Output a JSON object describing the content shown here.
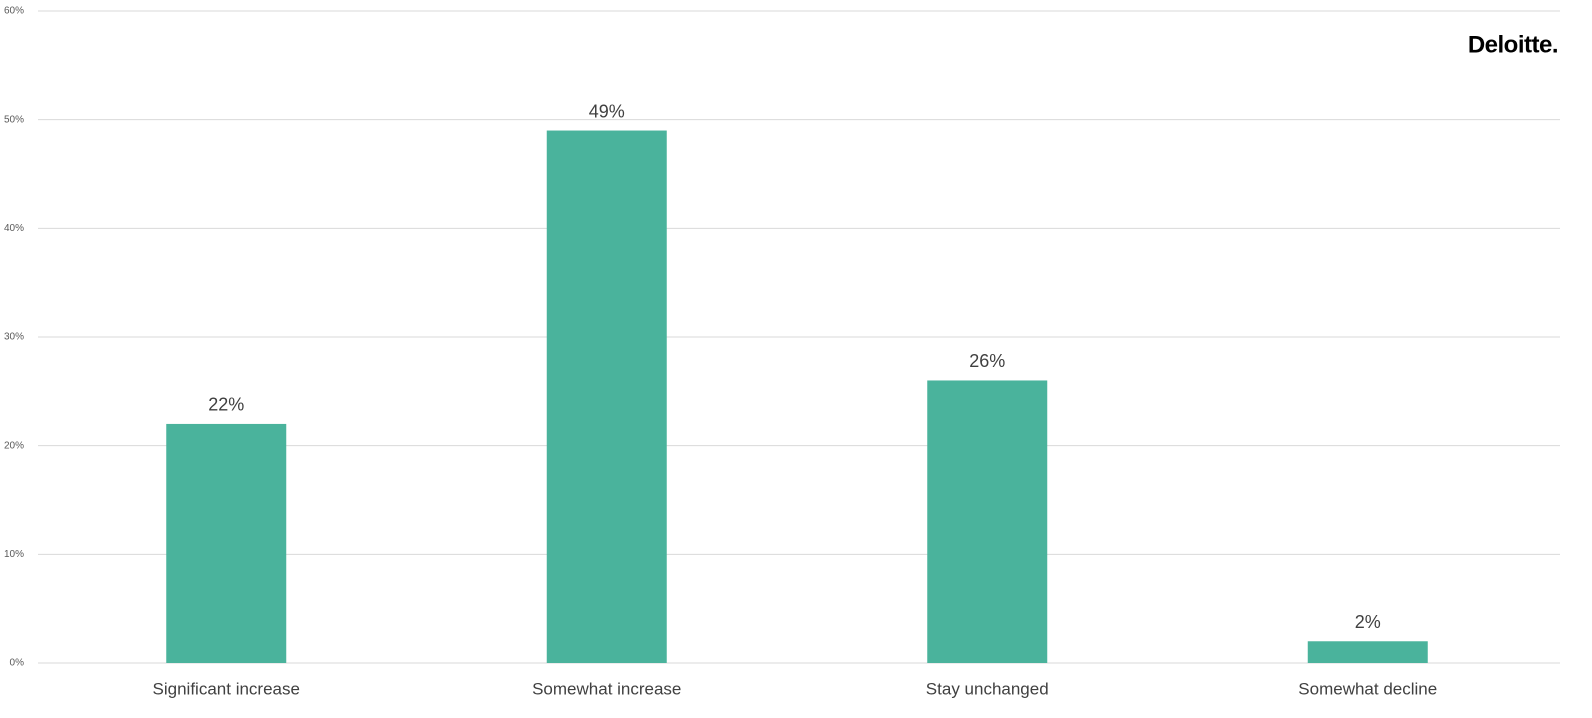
{
  "chart_data": {
    "type": "bar",
    "logo": "Deloitte.",
    "categories": [
      "Significant increase",
      "Somewhat increase",
      "Stay unchanged",
      "Somewhat decline"
    ],
    "values": [
      22,
      49,
      26,
      2
    ],
    "value_labels": [
      "22%",
      "49%",
      "26%",
      "2%"
    ],
    "color": "#4ab39c",
    "ylim": [
      0,
      60
    ],
    "yticks": [
      {
        "value": 0,
        "label": "0%"
      },
      {
        "value": 10,
        "label": "10%"
      },
      {
        "value": 20,
        "label": "20%"
      },
      {
        "value": 30,
        "label": "30%"
      },
      {
        "value": 40,
        "label": "40%"
      },
      {
        "value": 50,
        "label": "50%"
      },
      {
        "value": 60,
        "label": "60%"
      }
    ],
    "grid": true
  }
}
